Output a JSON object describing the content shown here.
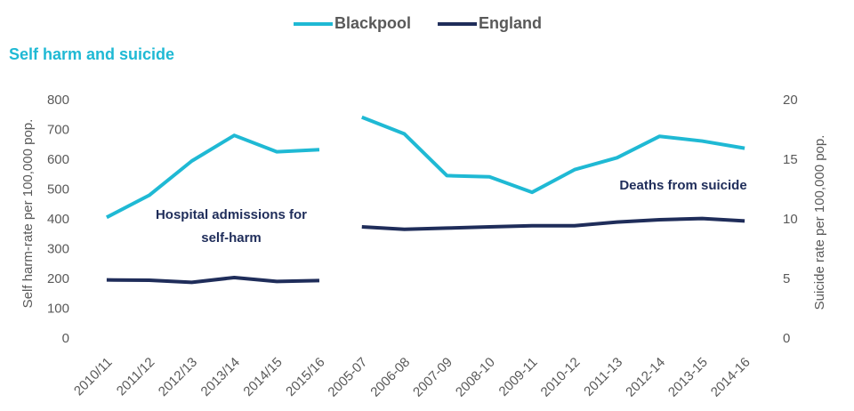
{
  "chart_data": {
    "type": "line",
    "title": "Self harm and suicide",
    "categories": [
      "2010/11",
      "2011/12",
      "2012/13",
      "2013/14",
      "2014/15",
      "2015/16",
      "2005-07",
      "2006-08",
      "2007-09",
      "2008-10",
      "2009-11",
      "2010-12",
      "2011-13",
      "2012-14",
      "2013-15",
      "2014-16"
    ],
    "series": [
      {
        "name": "Blackpool",
        "color": "#1fb9d4",
        "values": [
          408,
          482,
          597,
          683,
          628,
          635,
          null,
          null,
          null,
          null,
          null,
          null,
          null,
          null,
          null,
          null
        ],
        "y2_values": [
          null,
          null,
          null,
          null,
          null,
          null,
          18.6,
          17.2,
          13.7,
          13.6,
          12.3,
          14.2,
          15.2,
          17.0,
          16.6,
          16.0
        ]
      },
      {
        "name": "England",
        "color": "#1f2d5a",
        "values": [
          198,
          197,
          190,
          206,
          193,
          196,
          null,
          null,
          null,
          null,
          null,
          null,
          null,
          null,
          null,
          null
        ],
        "y2_values": [
          null,
          null,
          null,
          null,
          null,
          null,
          9.4,
          9.2,
          9.3,
          9.4,
          9.5,
          9.5,
          9.8,
          10.0,
          10.1,
          9.9
        ]
      }
    ],
    "ylabel": "Self harm-rate per 100,000 pop.",
    "y2label": "Suicide rate per 100,000 pop.",
    "ylim": [
      0,
      800
    ],
    "yticks": [
      0,
      100,
      200,
      300,
      400,
      500,
      600,
      700,
      800
    ],
    "y2lim": [
      0,
      20
    ],
    "y2ticks": [
      0,
      5,
      10,
      15,
      20
    ],
    "annotations": [
      {
        "lines": [
          "Hospital admissions for",
          "self-harm"
        ]
      },
      {
        "lines": [
          "Deaths from suicide"
        ]
      }
    ],
    "legend": "top",
    "grid": false
  }
}
